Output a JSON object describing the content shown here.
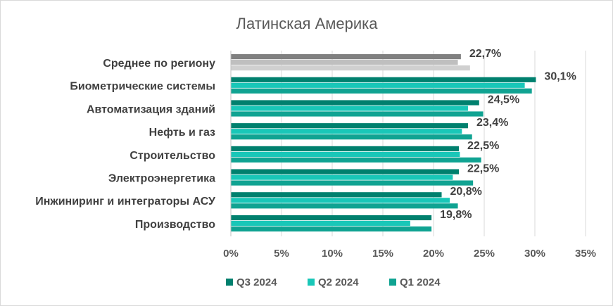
{
  "chart_data": {
    "type": "bar",
    "orientation": "horizontal",
    "title": "Латинская Америка",
    "categories": [
      "Среднее по региону",
      "Биометрические системы",
      "Автоматизация зданий",
      "Нефть и газ",
      "Строительство",
      "Электроэнергетика",
      "Инжиниринг и интеграторы АСУ",
      "Производство"
    ],
    "series": [
      {
        "name": "Q3 2024",
        "color": "#00806e",
        "values": [
          22.7,
          30.1,
          24.5,
          23.4,
          22.5,
          22.5,
          20.8,
          19.8
        ]
      },
      {
        "name": "Q2 2024",
        "color": "#19c7b8",
        "values": [
          22.4,
          29.0,
          23.4,
          22.8,
          22.6,
          21.9,
          21.6,
          17.7
        ]
      },
      {
        "name": "Q1 2024",
        "color": "#10a392",
        "values": [
          23.6,
          29.7,
          24.9,
          23.8,
          24.7,
          23.9,
          22.4,
          19.8
        ]
      }
    ],
    "average_row_colors": [
      "#808080",
      "#bfbfbf",
      "#d0d0d0"
    ],
    "data_labels": [
      "22,7%",
      "30,1%",
      "24,5%",
      "23,4%",
      "22,5%",
      "22,5%",
      "20,8%",
      "19,8%"
    ],
    "xlim": [
      0,
      35
    ],
    "xticks": [
      "0%",
      "5%",
      "10%",
      "15%",
      "20%",
      "25%",
      "30%",
      "35%"
    ],
    "grid": true,
    "legend_position": "bottom"
  }
}
